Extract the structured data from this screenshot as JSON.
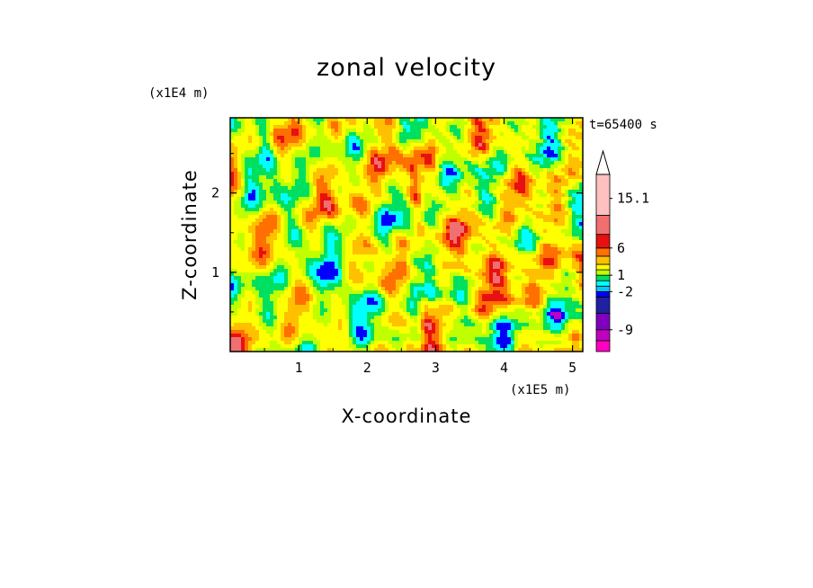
{
  "chart_data": {
    "type": "heatmap",
    "title": "zonal velocity",
    "xlabel": "X-coordinate",
    "ylabel": "Z-coordinate",
    "x_scale_label": "(x1E5 m)",
    "y_scale_label": "(x1E4 m)",
    "time_label": "t=65400 s",
    "xlim": [
      0,
      5.15
    ],
    "ylim": [
      0,
      2.95
    ],
    "x_ticks": [
      {
        "value": 1,
        "label": "1"
      },
      {
        "value": 2,
        "label": "2"
      },
      {
        "value": 3,
        "label": "3"
      },
      {
        "value": 4,
        "label": "4"
      },
      {
        "value": 5,
        "label": "5"
      }
    ],
    "y_ticks": [
      {
        "value": 1,
        "label": "1"
      },
      {
        "value": 2,
        "label": "2"
      }
    ],
    "colorbar": {
      "levels": [
        {
          "color": "#ff00c0"
        },
        {
          "color": "#c000c0"
        },
        {
          "color": "#8000c0"
        },
        {
          "color": "#2020a0"
        },
        {
          "color": "#0000ff"
        },
        {
          "color": "#00c8ff"
        },
        {
          "color": "#00ffff"
        },
        {
          "color": "#00e060"
        },
        {
          "color": "#c0ff00"
        },
        {
          "color": "#ffff00"
        },
        {
          "color": "#ffc000"
        },
        {
          "color": "#ff7000"
        },
        {
          "color": "#e81010"
        },
        {
          "color": "#f07070"
        },
        {
          "color": "#ffc0c0"
        }
      ],
      "labels": [
        "15.1",
        "6",
        "1",
        "-2",
        "-9"
      ],
      "label_values": [
        15.1,
        6,
        1,
        -2,
        -9
      ],
      "overflow_color": "#ffffff"
    }
  }
}
